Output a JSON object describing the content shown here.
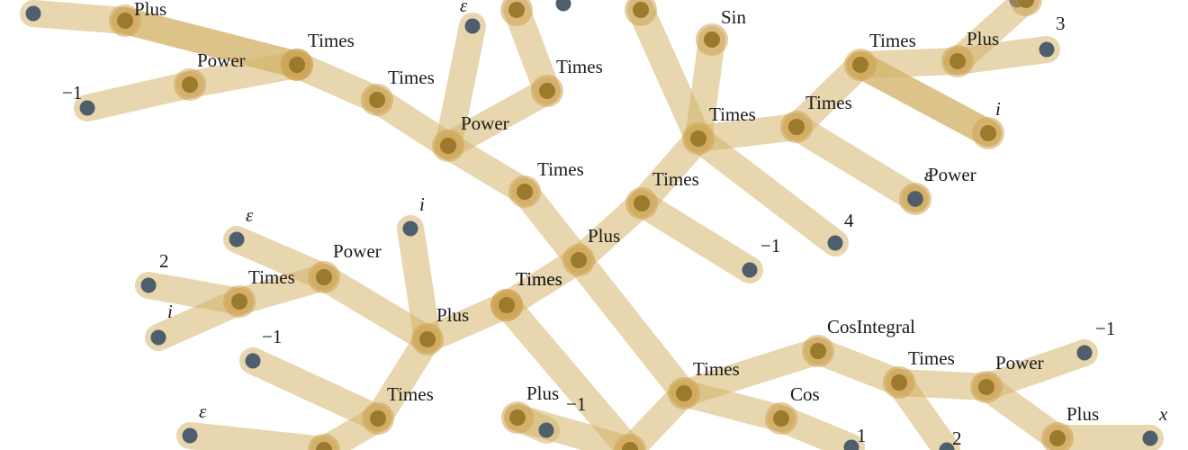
{
  "diagram": {
    "type": "expression-tree",
    "colors": {
      "edge": "#d4b46c",
      "halo": "#cda352",
      "operator_node": "#9a7a2c",
      "leaf_node": "#4f5e6c",
      "text": "#1a1a1a"
    },
    "nodes": [
      {
        "id": "n1",
        "kind": "leaf",
        "label": ""
      },
      {
        "id": "n2",
        "kind": "op",
        "label": "Plus"
      },
      {
        "id": "n3",
        "kind": "op",
        "label": "Power"
      },
      {
        "id": "n4",
        "kind": "leaf",
        "label": "−1"
      },
      {
        "id": "n5",
        "kind": "op",
        "label": "Times"
      },
      {
        "id": "n6",
        "kind": "op",
        "label": "Times"
      },
      {
        "id": "n7",
        "kind": "op",
        "label": "Power"
      },
      {
        "id": "n8",
        "kind": "leaf",
        "label": "ε"
      },
      {
        "id": "n9",
        "kind": "op",
        "label": "Times"
      },
      {
        "id": "n10",
        "kind": "op",
        "label": ""
      },
      {
        "id": "n11",
        "kind": "leaf",
        "label": ""
      },
      {
        "id": "n12",
        "kind": "op",
        "label": "Times"
      },
      {
        "id": "n13",
        "kind": "op",
        "label": "Plus"
      },
      {
        "id": "n14",
        "kind": "op",
        "label": "Times"
      },
      {
        "id": "n15",
        "kind": "op",
        "label": ""
      },
      {
        "id": "n16",
        "kind": "op",
        "label": "Sin"
      },
      {
        "id": "n17",
        "kind": "op",
        "label": "Times"
      },
      {
        "id": "n18",
        "kind": "op",
        "label": "Times"
      },
      {
        "id": "n19",
        "kind": "op",
        "label": "Power"
      },
      {
        "id": "n20",
        "kind": "leaf",
        "label": "ε"
      },
      {
        "id": "n21",
        "kind": "leaf",
        "label": "4"
      },
      {
        "id": "n22",
        "kind": "leaf",
        "label": "−1"
      },
      {
        "id": "n23",
        "kind": "op",
        "label": "Times"
      },
      {
        "id": "n24",
        "kind": "op",
        "label": "Plus"
      },
      {
        "id": "n25",
        "kind": "leaf",
        "label": "3"
      },
      {
        "id": "n26",
        "kind": "leaf",
        "label": "i"
      },
      {
        "id": "n27",
        "kind": "leaf",
        "label": ""
      },
      {
        "id": "n28",
        "kind": "op",
        "label": "Times"
      },
      {
        "id": "n29",
        "kind": "op",
        "label": "Plus"
      },
      {
        "id": "n30",
        "kind": "op",
        "label": "Power"
      },
      {
        "id": "n31",
        "kind": "op",
        "label": "Times"
      },
      {
        "id": "n32",
        "kind": "leaf",
        "label": "ε"
      },
      {
        "id": "n33",
        "kind": "leaf",
        "label": "2"
      },
      {
        "id": "n34",
        "kind": "leaf",
        "label": "i"
      },
      {
        "id": "n35",
        "kind": "leaf",
        "label": "i"
      },
      {
        "id": "n36",
        "kind": "op",
        "label": "Times"
      },
      {
        "id": "n37",
        "kind": "leaf",
        "label": "−1"
      },
      {
        "id": "n38",
        "kind": "leaf",
        "label": "ε"
      },
      {
        "id": "n39",
        "kind": "op",
        "label": "Plus"
      },
      {
        "id": "n40",
        "kind": "leaf",
        "label": "−1"
      },
      {
        "id": "n41",
        "kind": "op",
        "label": "Times"
      },
      {
        "id": "n42",
        "kind": "op",
        "label": "Times"
      },
      {
        "id": "n43",
        "kind": "op",
        "label": "CosIntegral"
      },
      {
        "id": "n44",
        "kind": "op",
        "label": "Cos"
      },
      {
        "id": "n45",
        "kind": "leaf",
        "label": "1"
      },
      {
        "id": "n46",
        "kind": "op",
        "label": "Times"
      },
      {
        "id": "n47",
        "kind": "leaf",
        "label": "2"
      },
      {
        "id": "n48",
        "kind": "op",
        "label": "Power"
      },
      {
        "id": "n49",
        "kind": "leaf",
        "label": "−1"
      },
      {
        "id": "n50",
        "kind": "op",
        "label": "Plus"
      },
      {
        "id": "n51",
        "kind": "leaf",
        "label": "x"
      },
      {
        "id": "n52",
        "kind": "op",
        "label": ""
      },
      {
        "id": "n53",
        "kind": "op",
        "label": ""
      },
      {
        "id": "n54",
        "kind": "op",
        "label": ""
      },
      {
        "id": "n55",
        "kind": "op",
        "label": ""
      },
      {
        "id": "n56",
        "kind": "op",
        "label": ""
      }
    ],
    "edges": [
      [
        "n1",
        "n2"
      ],
      [
        "n2",
        "n5"
      ],
      [
        "n2",
        "n56"
      ],
      [
        "n3",
        "n5"
      ],
      [
        "n3",
        "n4"
      ],
      [
        "n5",
        "n56"
      ],
      [
        "n5",
        "n6"
      ],
      [
        "n6",
        "n7"
      ],
      [
        "n7",
        "n8"
      ],
      [
        "n7",
        "n9"
      ],
      [
        "n9",
        "n13"
      ],
      [
        "n10",
        "n12"
      ],
      [
        "n12",
        "n7"
      ],
      [
        "n15",
        "n17"
      ],
      [
        "n16",
        "n17"
      ],
      [
        "n17",
        "n14"
      ],
      [
        "n17",
        "n18"
      ],
      [
        "n17",
        "n21"
      ],
      [
        "n14",
        "n13"
      ],
      [
        "n14",
        "n22"
      ],
      [
        "n18",
        "n19"
      ],
      [
        "n19",
        "n20"
      ],
      [
        "n18",
        "n23"
      ],
      [
        "n23",
        "n24"
      ],
      [
        "n24",
        "n25"
      ],
      [
        "n24",
        "n52"
      ],
      [
        "n23",
        "n26"
      ],
      [
        "n23",
        "n53"
      ],
      [
        "n13",
        "n28"
      ],
      [
        "n28",
        "n29"
      ],
      [
        "n28",
        "n41"
      ],
      [
        "n28",
        "n55"
      ],
      [
        "n29",
        "n30"
      ],
      [
        "n29",
        "n36"
      ],
      [
        "n30",
        "n32"
      ],
      [
        "n30",
        "n31"
      ],
      [
        "n31",
        "n33"
      ],
      [
        "n31",
        "n34"
      ],
      [
        "n29",
        "n35"
      ],
      [
        "n36",
        "n37"
      ],
      [
        "n36",
        "n54"
      ],
      [
        "n38",
        "n54"
      ],
      [
        "n13",
        "n42"
      ],
      [
        "n42",
        "n43"
      ],
      [
        "n42",
        "n44"
      ],
      [
        "n42",
        "n55"
      ],
      [
        "n44",
        "n45"
      ],
      [
        "n43",
        "n46"
      ],
      [
        "n46",
        "n48"
      ],
      [
        "n46",
        "n47"
      ],
      [
        "n48",
        "n49"
      ],
      [
        "n48",
        "n50"
      ],
      [
        "n50",
        "n51"
      ],
      [
        "n39",
        "n40"
      ],
      [
        "n39",
        "n55"
      ]
    ]
  }
}
